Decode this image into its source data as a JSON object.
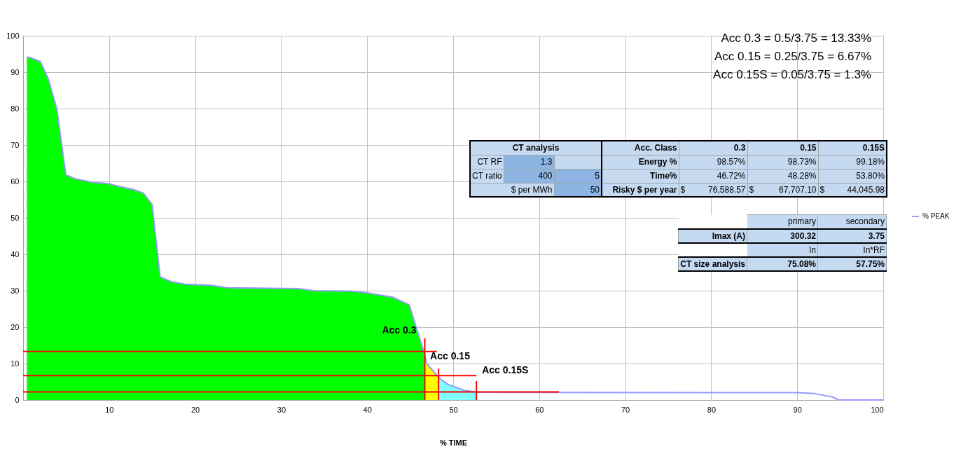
{
  "chart_data": {
    "type": "area",
    "xlabel": "% TIME",
    "xlim": [
      0,
      100
    ],
    "ylim": [
      0,
      100
    ],
    "xticks": [
      10,
      20,
      30,
      40,
      50,
      60,
      70,
      80,
      90,
      100
    ],
    "yticks": [
      0,
      10,
      20,
      30,
      40,
      50,
      60,
      70,
      80,
      90,
      100
    ],
    "grid": true,
    "legend": "right",
    "series": [
      {
        "type": "area",
        "color": "#00ff00",
        "x": [
          0.44,
          0.84,
          2.0,
          2.94,
          3.95,
          4.45,
          4.97,
          6.13,
          8.17,
          9.9,
          11.37,
          12.8,
          13.98,
          15.0,
          15.93,
          17.2,
          18.8,
          21.8,
          23.7,
          32.0,
          33.75,
          38.1,
          39.7,
          43.0,
          44.9,
          45.7,
          46.5,
          46.7
        ],
        "values": [
          94.2,
          94.0,
          92.9,
          88.1,
          79.6,
          70.7,
          61.8,
          60.7,
          59.7,
          59.4,
          58.5,
          57.8,
          56.8,
          53.7,
          33.8,
          32.5,
          31.8,
          31.5,
          30.8,
          30.6,
          30.0,
          29.9,
          29.5,
          28.2,
          26.1,
          20.0,
          14.0,
          12.5
        ]
      },
      {
        "type": "area",
        "color": "#ffff00",
        "x": [
          46.7,
          46.9,
          48.3
        ],
        "values": [
          12.5,
          10.1,
          6.2
        ]
      },
      {
        "type": "area",
        "color": "#80ffff",
        "x": [
          48.3,
          49.3,
          51.2,
          52.3,
          52.7
        ],
        "values": [
          6.2,
          4.4,
          2.7,
          2.3,
          2.1
        ]
      },
      {
        "type": "line",
        "name": "% PEAK",
        "color": "#9999ff",
        "x": [
          0.44,
          0.84,
          2.0,
          2.94,
          3.95,
          4.45,
          4.97,
          6.13,
          8.17,
          9.9,
          11.37,
          12.8,
          13.98,
          15.0,
          15.93,
          17.2,
          18.8,
          21.8,
          23.7,
          32.0,
          33.75,
          38.1,
          39.7,
          43.0,
          44.9,
          45.7,
          46.5,
          46.7,
          46.9,
          48.3,
          49.3,
          51.2,
          52.3,
          52.7,
          90,
          91.9,
          94.1,
          94.8,
          100
        ],
        "values": [
          94.2,
          94.0,
          92.9,
          88.1,
          79.6,
          70.7,
          61.8,
          60.7,
          59.7,
          59.4,
          58.5,
          57.8,
          56.8,
          53.7,
          33.8,
          32.5,
          31.8,
          31.5,
          30.8,
          30.6,
          30.0,
          29.9,
          29.5,
          28.2,
          26.1,
          20.0,
          14.0,
          12.5,
          10.1,
          6.2,
          4.4,
          2.7,
          2.3,
          2.1,
          2.0,
          1.8,
          0.8,
          0,
          0
        ]
      },
      {
        "type": "line",
        "color": "#ff0000",
        "x": [
          0,
          48.1
        ],
        "values": [
          13.3,
          13.3
        ]
      },
      {
        "type": "line",
        "color": "#ff0000",
        "x": [
          0,
          52.7
        ],
        "values": [
          6.7,
          6.7
        ]
      },
      {
        "type": "line",
        "color": "#ff0000",
        "x": [
          0,
          62.3
        ],
        "values": [
          2.2,
          2.2
        ]
      },
      {
        "type": "line",
        "color": "#ff0000",
        "x": [
          46.7,
          46.7
        ],
        "values": [
          0,
          16.9
        ]
      },
      {
        "type": "line",
        "color": "#ff0000",
        "x": [
          48.3,
          48.3
        ],
        "values": [
          0,
          8.6
        ]
      },
      {
        "type": "line",
        "color": "#ff0000",
        "x": [
          52.7,
          52.7
        ],
        "values": [
          0,
          5.2
        ]
      }
    ],
    "annotations": [
      "Acc 0.3 = 0.5/3.75 = 13.33%",
      "Acc 0.15 = 0.25/3.75 = 6.67%",
      "Acc 0.15S = 0.05/3.75 = 1.3%",
      "CT analysis",
      "Acc. Class",
      "0.3",
      "0.15",
      "0.15S",
      "CT RF",
      "1.3",
      "Energy %",
      "98.57%",
      "98.73%",
      "99.18%",
      "CT ratio",
      "400",
      "5",
      "Time%",
      "46.72%",
      "48.28%",
      "53.80%",
      "$ per MWh",
      "50",
      "Risky $ per year",
      "$ 76,588.57",
      "$ 67,707.10",
      "$ 44,045.98",
      "primary",
      "secondary",
      "Imax (A)",
      "300.32",
      "3.75",
      "In",
      "In*RF",
      "CT size analysis",
      "75.08%",
      "57.75%",
      {
        "text": "Acc 0.3",
        "x": 46.7,
        "y": 16.9
      },
      {
        "text": "Acc 0.15",
        "x": 48.3,
        "y": 8.6
      },
      {
        "text": "Acc 0.15S",
        "x": 52.7,
        "y": 5.2
      }
    ]
  }
}
